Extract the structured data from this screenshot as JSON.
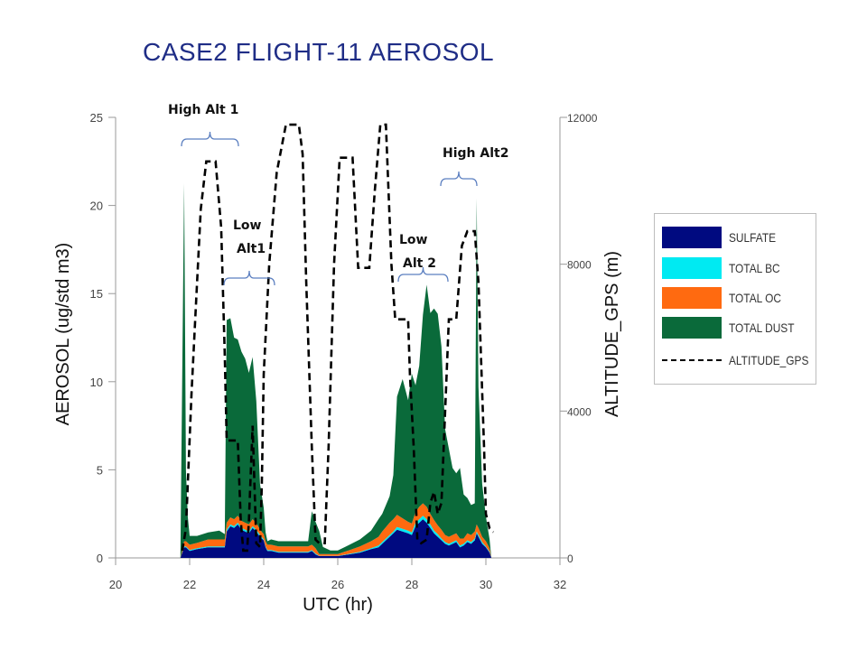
{
  "page": {
    "title": "CASE2 FLIGHT-11 AEROSOL"
  },
  "chart_data": {
    "type": "area",
    "title": "CASE2 FLIGHT-11 AEROSOL",
    "xlabel": "UTC (hr)",
    "ylabel": "AEROSOL (ug/std m3)",
    "y2label": "ALTITUDE_GPS (m)",
    "xlim": [
      20,
      32
    ],
    "ylim": [
      0,
      25
    ],
    "y2lim": [
      0,
      12000
    ],
    "xticks": [
      20,
      22,
      24,
      26,
      28,
      30,
      32
    ],
    "yticks": [
      0,
      5,
      10,
      15,
      20,
      25
    ],
    "y2ticks": [
      0,
      4000,
      8000,
      12000
    ],
    "stacked": true,
    "legend_position": "right",
    "x": [
      21.75,
      21.85,
      21.9,
      21.95,
      22.0,
      22.2,
      22.5,
      22.8,
      22.95,
      23.0,
      23.1,
      23.2,
      23.3,
      23.4,
      23.5,
      23.6,
      23.7,
      23.8,
      23.9,
      24.0,
      24.05,
      24.1,
      24.2,
      24.4,
      24.6,
      24.8,
      25.0,
      25.2,
      25.3,
      25.35,
      25.4,
      25.5,
      25.6,
      25.8,
      26.0,
      26.3,
      26.6,
      26.9,
      27.1,
      27.2,
      27.4,
      27.5,
      27.6,
      27.75,
      27.9,
      28.0,
      28.1,
      28.2,
      28.3,
      28.4,
      28.5,
      28.6,
      28.7,
      28.8,
      28.9,
      29.0,
      29.1,
      29.2,
      29.3,
      29.4,
      29.5,
      29.6,
      29.7,
      29.75,
      29.8,
      29.9,
      30.0,
      30.1,
      30.15
    ],
    "series": [
      {
        "name": "SULFATE",
        "color": "#000a80",
        "values": [
          0,
          0.6,
          0.6,
          0.5,
          0.4,
          0.5,
          0.6,
          0.6,
          0.6,
          1.5,
          1.8,
          1.7,
          1.9,
          1.6,
          1.5,
          1.4,
          1.7,
          1.5,
          1.2,
          1.0,
          0.6,
          0.4,
          0.4,
          0.3,
          0.3,
          0.3,
          0.3,
          0.3,
          0.4,
          0.3,
          0.2,
          0.1,
          0.1,
          0.1,
          0.1,
          0.2,
          0.3,
          0.5,
          0.6,
          0.8,
          1.2,
          1.4,
          1.6,
          1.5,
          1.4,
          1.3,
          1.8,
          2.0,
          2.2,
          2.0,
          1.7,
          1.4,
          1.2,
          1.0,
          0.8,
          0.7,
          0.8,
          0.9,
          0.6,
          0.7,
          0.9,
          0.8,
          1.0,
          1.4,
          1.2,
          0.8,
          0.6,
          0.3,
          0
        ]
      },
      {
        "name": "TOTAL BC",
        "color": "#00eaf2",
        "values": [
          0,
          0.05,
          0.05,
          0.05,
          0.05,
          0.05,
          0.05,
          0.05,
          0.05,
          0.1,
          0.1,
          0.1,
          0.1,
          0.1,
          0.1,
          0.1,
          0.1,
          0.1,
          0.1,
          0.05,
          0.05,
          0.05,
          0.05,
          0.05,
          0.05,
          0.05,
          0.05,
          0.05,
          0.05,
          0.05,
          0.05,
          0.02,
          0.02,
          0.02,
          0.02,
          0.03,
          0.05,
          0.05,
          0.1,
          0.1,
          0.1,
          0.1,
          0.15,
          0.15,
          0.15,
          0.15,
          0.2,
          0.2,
          0.2,
          0.2,
          0.2,
          0.15,
          0.15,
          0.1,
          0.1,
          0.1,
          0.1,
          0.1,
          0.1,
          0.1,
          0.1,
          0.1,
          0.1,
          0.1,
          0.1,
          0.1,
          0.05,
          0.05,
          0
        ]
      },
      {
        "name": "TOTAL OC",
        "color": "#ff6a10",
        "values": [
          0,
          0.3,
          0.3,
          0.3,
          0.3,
          0.3,
          0.4,
          0.4,
          0.4,
          0.4,
          0.4,
          0.4,
          0.4,
          0.4,
          0.4,
          0.4,
          0.4,
          0.4,
          0.3,
          0.3,
          0.3,
          0.3,
          0.3,
          0.3,
          0.3,
          0.3,
          0.3,
          0.3,
          0.3,
          0.3,
          0.3,
          0.1,
          0.1,
          0.1,
          0.1,
          0.2,
          0.3,
          0.4,
          0.5,
          0.6,
          0.7,
          0.7,
          0.7,
          0.6,
          0.5,
          0.5,
          0.6,
          0.7,
          0.7,
          0.7,
          0.6,
          0.6,
          0.5,
          0.5,
          0.4,
          0.4,
          0.4,
          0.4,
          0.4,
          0.3,
          0.4,
          0.4,
          0.4,
          0.4,
          0.4,
          0.3,
          0.3,
          0.2,
          0
        ]
      },
      {
        "name": "TOTAL DUST",
        "color": "#0a6a3a",
        "values": [
          0,
          20.3,
          4.0,
          1.5,
          0.5,
          0.4,
          0.4,
          0.5,
          0.3,
          11.5,
          11.3,
          10.3,
          10.0,
          9.6,
          9.3,
          8.6,
          9.2,
          6.9,
          2.6,
          1.5,
          0.5,
          0.2,
          0.3,
          0.3,
          0.3,
          0.3,
          0.3,
          0.3,
          1.9,
          1.7,
          1.5,
          1.3,
          0.4,
          0.2,
          0.2,
          0.3,
          0.4,
          0.6,
          1.0,
          1.0,
          1.5,
          2.5,
          6.7,
          7.9,
          6.9,
          8.5,
          7.2,
          8.0,
          10.7,
          12.6,
          11.4,
          12.0,
          12.0,
          10.4,
          6.0,
          5.0,
          3.8,
          3.4,
          4.0,
          2.5,
          2.0,
          1.7,
          1.6,
          18.5,
          8.0,
          3.0,
          1.4,
          0.5,
          0
        ]
      }
    ],
    "altitude": {
      "name": "ALTITUDE_GPS",
      "style": "dashed",
      "points": [
        [
          21.8,
          200
        ],
        [
          21.9,
          800
        ],
        [
          22.05,
          4500
        ],
        [
          22.2,
          7500
        ],
        [
          22.3,
          9500
        ],
        [
          22.45,
          10800
        ],
        [
          22.7,
          10800
        ],
        [
          22.85,
          9000
        ],
        [
          22.95,
          5500
        ],
        [
          23.0,
          3200
        ],
        [
          23.3,
          3200
        ],
        [
          23.38,
          1000
        ],
        [
          23.45,
          200
        ],
        [
          23.55,
          200
        ],
        [
          23.6,
          1000
        ],
        [
          23.7,
          3600
        ],
        [
          23.8,
          400
        ],
        [
          23.9,
          300
        ],
        [
          23.95,
          2000
        ],
        [
          24.0,
          5000
        ],
        [
          24.15,
          8000
        ],
        [
          24.35,
          10500
        ],
        [
          24.6,
          11800
        ],
        [
          24.95,
          11800
        ],
        [
          25.05,
          11000
        ],
        [
          25.15,
          7500
        ],
        [
          25.3,
          3000
        ],
        [
          25.4,
          500
        ],
        [
          25.5,
          400
        ],
        [
          25.65,
          400
        ],
        [
          25.75,
          3000
        ],
        [
          25.9,
          8000
        ],
        [
          26.05,
          10900
        ],
        [
          26.4,
          10900
        ],
        [
          26.55,
          7900
        ],
        [
          26.85,
          7900
        ],
        [
          27.0,
          10000
        ],
        [
          27.15,
          11800
        ],
        [
          27.3,
          11800
        ],
        [
          27.45,
          8000
        ],
        [
          27.55,
          6500
        ],
        [
          27.9,
          6500
        ],
        [
          27.95,
          5000
        ],
        [
          28.05,
          3000
        ],
        [
          28.15,
          500
        ],
        [
          28.25,
          400
        ],
        [
          28.4,
          500
        ],
        [
          28.5,
          1500
        ],
        [
          28.6,
          1800
        ],
        [
          28.7,
          1200
        ],
        [
          28.8,
          1500
        ],
        [
          28.9,
          4000
        ],
        [
          29.0,
          6500
        ],
        [
          29.2,
          6500
        ],
        [
          29.35,
          8500
        ],
        [
          29.5,
          8900
        ],
        [
          29.7,
          8900
        ],
        [
          29.8,
          7500
        ],
        [
          29.95,
          3000
        ],
        [
          30.0,
          1200
        ],
        [
          30.1,
          800
        ],
        [
          30.2,
          700
        ]
      ]
    },
    "legend": [
      "SULFATE",
      "TOTAL BC",
      "TOTAL OC",
      "TOTAL DUST",
      "ALTITUDE_GPS"
    ],
    "annotations": [
      "High Alt 1",
      "Low Alt1",
      "Low Alt 2",
      "High Alt2"
    ]
  },
  "annotations": {
    "high1": "High Alt 1",
    "low1_line1": "Low",
    "low1_line2": "Alt1",
    "low2_line1": "Low",
    "low2_line2": "Alt 2",
    "high2": "High Alt2"
  }
}
